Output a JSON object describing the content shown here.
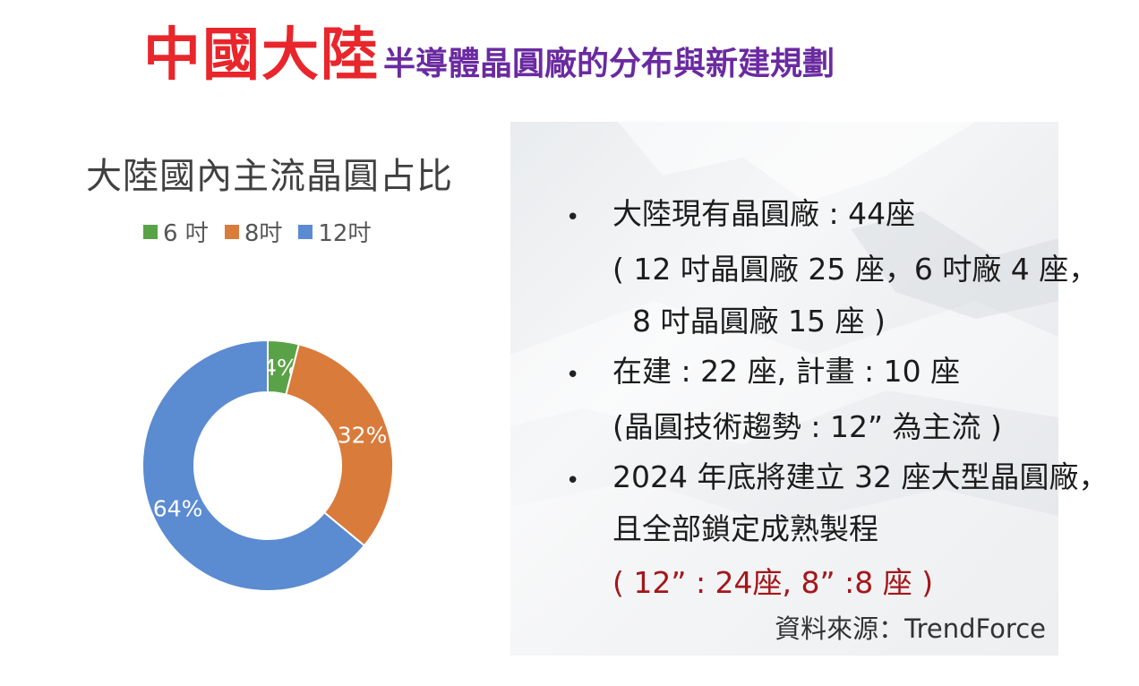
{
  "title": {
    "main": "中國大陸",
    "sub": "半導體晶圓廠的分布與新建規劃"
  },
  "chart_data": {
    "type": "pie",
    "title": "大陸國內主流晶圓占比",
    "legend_position": "top",
    "categories": [
      "6 吋",
      "8吋",
      "12吋"
    ],
    "values": [
      4,
      32,
      64
    ],
    "labels": [
      "4%",
      "32%",
      "64%"
    ],
    "colors": [
      "#5aa247",
      "#d97b3b",
      "#5b8bd1"
    ],
    "donut": true
  },
  "info": {
    "bullets": [
      {
        "lines": [
          "大陸現有晶圓廠 : 44座",
          "( 12 吋晶圓廠 25 座，6 吋廠 4 座，",
          "  8 吋晶圓廠 15 座 )"
        ]
      },
      {
        "lines": [
          "在建 : 22 座, 計畫 : 10 座",
          "(晶圓技術趨勢 :  12”  為主流 )"
        ]
      },
      {
        "lines": [
          "2024 年底將建立 32 座大型晶圓廠，",
          "且全部鎖定成熟製程",
          "( 12”  : 24座, 8” :8 座 )"
        ]
      }
    ],
    "source": "資料來源：TrendForce",
    "accent_color": "#a4161a"
  }
}
